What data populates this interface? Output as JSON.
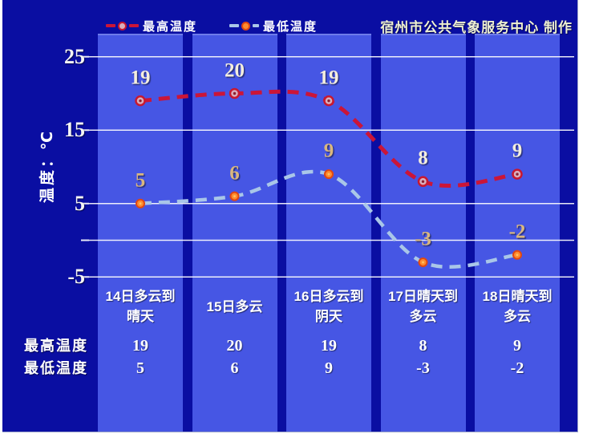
{
  "header": {
    "credit": "宿州市公共气象服务中心  制作"
  },
  "legend": {
    "high_label": "最高温度",
    "low_label": "最低温度"
  },
  "y_axis": {
    "title": "温度：℃",
    "tick_labels": [
      "25",
      "15",
      "5",
      "-5"
    ],
    "tick_values": [
      25,
      15,
      5,
      -5
    ]
  },
  "chart_data": {
    "type": "line",
    "title": "",
    "xlabel": "",
    "ylabel": "温度：℃",
    "categories": [
      "14日多云到晴天",
      "15日多云",
      "16日多云到阴天",
      "17日晴天到多云",
      "18日晴天到多云"
    ],
    "category_lines": [
      [
        "14日多云到",
        "晴天"
      ],
      [
        "15日多云"
      ],
      [
        "16日多云到",
        "阴天"
      ],
      [
        "17日晴天到",
        "多云"
      ],
      [
        "18日晴天到",
        "多云"
      ]
    ],
    "series": [
      {
        "name": "最高温度",
        "values": [
          19,
          20,
          19,
          8,
          9
        ],
        "color": "#cb1538",
        "label_color": "#f4eedd",
        "marker": "ring",
        "line_style": "dashed"
      },
      {
        "name": "最低温度",
        "values": [
          5,
          6,
          9,
          -3,
          -2
        ],
        "color": "#a9c6e8",
        "label_color": "#d9b77f",
        "marker": "dot",
        "line_style": "dashed"
      }
    ],
    "ylim": [
      -7,
      27
    ],
    "gridline_values": [
      25,
      15,
      5,
      0,
      -5
    ],
    "grid": true,
    "legend_position": "top"
  },
  "table": {
    "rows": [
      {
        "label": "最高温度",
        "values": [
          "19",
          "20",
          "19",
          "8",
          "9"
        ]
      },
      {
        "label": "最低温度",
        "values": [
          "5",
          "6",
          "9",
          "-3",
          "-2"
        ]
      }
    ]
  },
  "colors": {
    "panel_bg": "#0a0ea2",
    "column_bg": "#4656e4",
    "gridline": "#ffffff",
    "high_line": "#cb1538",
    "low_line": "#a9c6e8",
    "high_marker_fill": "#d9aebc",
    "high_marker_ring": "#c81830",
    "low_marker_fill": "#ff8c2e",
    "low_marker_ring": "#e04812",
    "credit_text": "#eef0d2"
  }
}
